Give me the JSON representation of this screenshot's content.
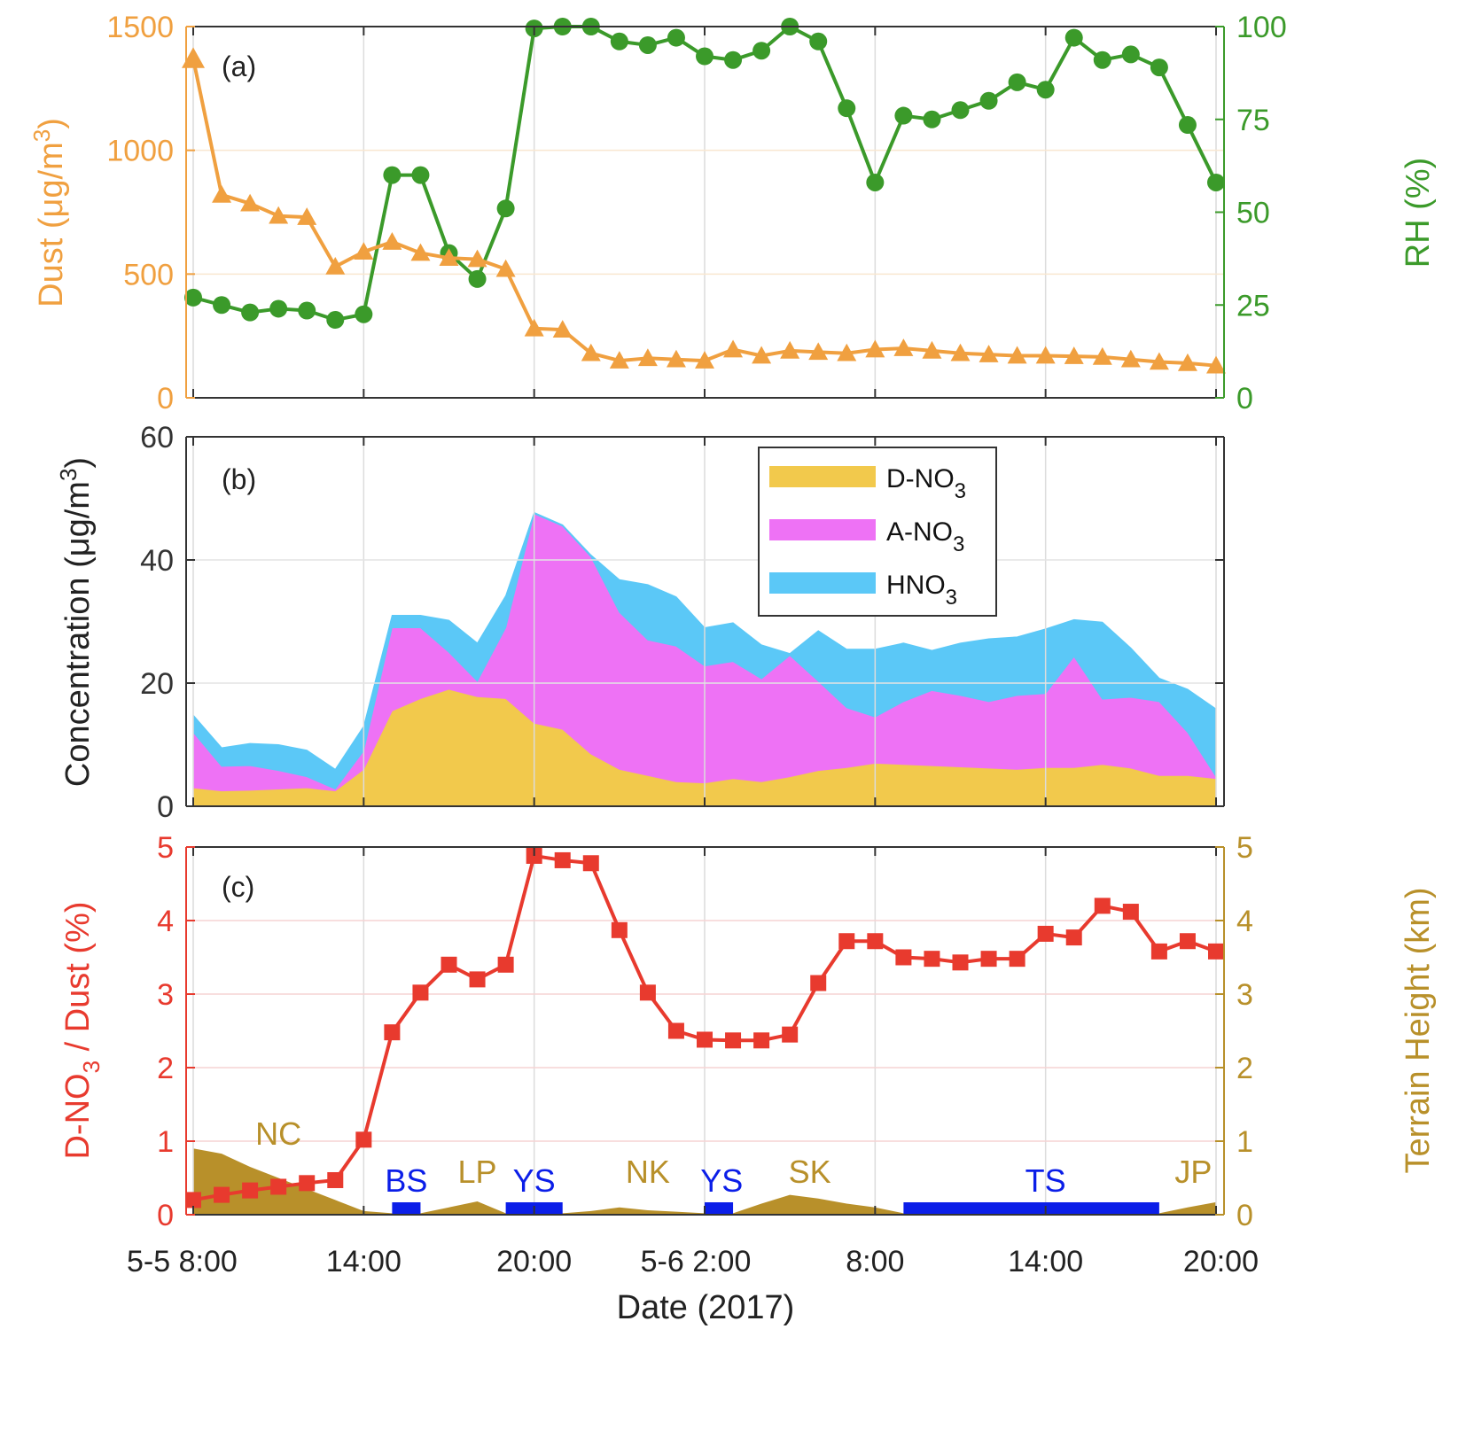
{
  "time_ticks": [
    {
      "h": 0,
      "label": "5-5 8:00"
    },
    {
      "h": 6,
      "label": "14:00"
    },
    {
      "h": 12,
      "label": "20:00"
    },
    {
      "h": 18,
      "label": "5-6 2:00"
    },
    {
      "h": 24,
      "label": "8:00"
    },
    {
      "h": 30,
      "label": "14:00"
    },
    {
      "h": 36,
      "label": "20:00"
    }
  ],
  "colors": {
    "dust": "#f0a040",
    "rh": "#3b9a2a",
    "dno3": "#f2c94c",
    "ano3": "#ee72f5",
    "hno3": "#5bc8f7",
    "ratio": "#e83a2e",
    "terrain_fill": "#b8902a",
    "terrain_text": "#b8902a",
    "sea": "#0b1ee8"
  },
  "chart_data": [
    {
      "panel": "(a)",
      "type": "line",
      "xlabel": "Date (2017)",
      "series": [
        {
          "name": "",
          "axis": "left",
          "marker": "triangle",
          "hours": [
            0,
            1,
            2,
            3,
            4,
            5,
            6,
            7,
            8,
            9,
            10,
            11,
            12,
            13,
            14,
            15,
            16,
            17,
            18,
            19,
            20,
            21,
            22,
            23,
            24,
            25,
            26,
            27,
            28,
            29,
            30,
            31,
            32,
            33,
            34,
            35,
            36
          ],
          "values": [
            1370,
            820,
            785,
            735,
            730,
            530,
            590,
            630,
            585,
            565,
            560,
            520,
            280,
            275,
            180,
            150,
            160,
            155,
            150,
            195,
            170,
            190,
            185,
            180,
            195,
            200,
            190,
            180,
            175,
            170,
            170,
            168,
            165,
            155,
            145,
            140,
            130
          ]
        },
        {
          "name": "",
          "axis": "right",
          "marker": "circle",
          "hours": [
            0,
            1,
            2,
            3,
            4,
            5,
            6,
            7,
            8,
            9,
            10,
            11,
            12,
            13,
            14,
            15,
            16,
            17,
            18,
            19,
            20,
            21,
            22,
            23,
            24,
            25,
            26,
            27,
            28,
            29,
            30,
            31,
            32,
            33,
            34,
            35,
            36
          ],
          "values": [
            27,
            25,
            23,
            24,
            23.5,
            21,
            22.5,
            60,
            60,
            39,
            32,
            51,
            99.5,
            100,
            100,
            96,
            95,
            97,
            92,
            91,
            93.5,
            100,
            96,
            78,
            58,
            76,
            75,
            77.5,
            80,
            85,
            83,
            97,
            91,
            92.5,
            89,
            73.5,
            58
          ]
        }
      ],
      "y_left": {
        "label": "Dust (μg/m³)",
        "label_main": "Dust (μg/m",
        "label_sup": "3",
        "label_end": ")",
        "lim": [
          0,
          1500
        ],
        "ticks": [
          0,
          500,
          1000,
          1500
        ]
      },
      "y_right": {
        "label": "RH (%)",
        "lim": [
          0,
          100
        ],
        "ticks": [
          0,
          25,
          50,
          75,
          100
        ]
      }
    },
    {
      "panel": "(b)",
      "type": "area",
      "stacked": true,
      "xlabel": "Date (2017)",
      "hours": [
        0,
        1,
        2,
        3,
        4,
        5,
        6,
        7,
        8,
        9,
        10,
        11,
        12,
        13,
        14,
        15,
        16,
        17,
        18,
        19,
        20,
        21,
        22,
        23,
        24,
        25,
        26,
        27,
        28,
        29,
        30,
        31,
        32,
        33,
        34,
        35,
        36
      ],
      "series": [
        {
          "name": "D-NO₃",
          "name_main": "D-NO",
          "name_sub": "3",
          "values": [
            3,
            2.5,
            2.6,
            2.8,
            3,
            2.5,
            6,
            15.5,
            17.5,
            19,
            17.8,
            17.5,
            13.5,
            12.5,
            8.5,
            6,
            5,
            4,
            3.8,
            4.5,
            4,
            4.8,
            5.8,
            6.3,
            7,
            6.8,
            6.6,
            6.4,
            6.2,
            6,
            6.3,
            6.3,
            6.8,
            6.2,
            5,
            5,
            4.5
          ]
        },
        {
          "name": "A-NO₃",
          "name_main": "A-NO",
          "name_sub": "3",
          "values": [
            9,
            4,
            4,
            3,
            1.8,
            0.3,
            3,
            13.5,
            11.5,
            6,
            2.5,
            11.5,
            34,
            33,
            32,
            25.5,
            22,
            22,
            19,
            19,
            16.7,
            19.7,
            14.5,
            9.7,
            7.5,
            10.2,
            12.2,
            11.6,
            10.8,
            12,
            12,
            18,
            10.6,
            11.5,
            12,
            7,
            0.3
          ]
        },
        {
          "name": "HNO₃",
          "name_main": "HNO",
          "name_sub": "3",
          "values": [
            2.8,
            3,
            3.6,
            4.2,
            4.3,
            3.2,
            4,
            2,
            2,
            5.2,
            6.2,
            5.2,
            0.2,
            0.2,
            0.3,
            5.3,
            9,
            8,
            6.2,
            6.3,
            5.5,
            0.3,
            8.2,
            9.5,
            11,
            9.5,
            6.5,
            8.5,
            10.2,
            9.5,
            10.5,
            6,
            12.5,
            8,
            3.8,
            7,
            11
          ]
        }
      ],
      "y_left": {
        "label": "Concentration (μg/m³)",
        "label_main": "Concentration (μg/m",
        "label_sup": "3",
        "label_end": ")",
        "lim": [
          0,
          60
        ],
        "ticks": [
          0,
          20,
          40,
          60
        ]
      },
      "legend": "top-right"
    },
    {
      "panel": "(c)",
      "type": "line",
      "xlabel": "Date (2017)",
      "series": [
        {
          "name": "",
          "axis": "left",
          "marker": "square",
          "hours": [
            0,
            1,
            2,
            3,
            4,
            5,
            6,
            7,
            8,
            9,
            10,
            11,
            12,
            13,
            14,
            15,
            16,
            17,
            18,
            19,
            20,
            21,
            22,
            23,
            24,
            25,
            26,
            27,
            28,
            29,
            30,
            31,
            32,
            33,
            34,
            35,
            36
          ],
          "values": [
            0.2,
            0.27,
            0.33,
            0.38,
            0.43,
            0.47,
            1.02,
            2.48,
            3.02,
            3.4,
            3.2,
            3.4,
            4.88,
            4.82,
            4.78,
            3.87,
            3.02,
            2.5,
            2.38,
            2.37,
            2.37,
            2.45,
            3.15,
            3.72,
            3.72,
            3.5,
            3.48,
            3.43,
            3.48,
            3.48,
            3.82,
            3.77,
            4.2,
            4.12,
            3.58,
            3.72,
            3.58
          ]
        },
        {
          "name": "",
          "axis": "right",
          "type": "area",
          "hours": [
            0,
            1,
            2,
            3,
            4,
            5,
            6,
            7,
            8,
            9,
            10,
            11,
            12,
            13,
            14,
            15,
            16,
            17,
            18,
            19,
            20,
            21,
            22,
            23,
            24,
            25,
            26,
            27,
            28,
            29,
            30,
            31,
            32,
            33,
            34,
            35,
            36
          ],
          "values": [
            0.9,
            0.83,
            0.65,
            0.5,
            0.35,
            0.2,
            0.05,
            0.02,
            0.02,
            0.1,
            0.18,
            0.02,
            0.02,
            0.02,
            0.05,
            0.1,
            0.06,
            0.04,
            0.02,
            0.02,
            0.15,
            0.27,
            0.22,
            0.15,
            0.1,
            0.02,
            0.02,
            0.02,
            0.02,
            0.02,
            0.02,
            0.02,
            0.02,
            0.02,
            0.02,
            0.1,
            0.17
          ]
        }
      ],
      "y_left": {
        "label": "D-NO₃ / Dust (%)",
        "label_main": "D-NO",
        "label_sub": "3",
        "label_end": " / Dust (%)",
        "lim": [
          0,
          5
        ],
        "ticks": [
          0,
          1,
          2,
          3,
          4,
          5
        ]
      },
      "y_right": {
        "label": "Terrain Height (km)",
        "lim": [
          0,
          5
        ],
        "ticks": [
          0,
          1,
          2,
          3,
          4,
          5
        ]
      },
      "regions": [
        {
          "label": "NC",
          "kind": "land",
          "h": 3
        },
        {
          "label": "BS",
          "kind": "sea",
          "h": 7.5,
          "span": [
            7,
            8
          ]
        },
        {
          "label": "LP",
          "kind": "land",
          "h": 10
        },
        {
          "label": "YS",
          "kind": "sea",
          "h": 12,
          "span": [
            11,
            13
          ]
        },
        {
          "label": "NK",
          "kind": "land",
          "h": 16
        },
        {
          "label": "YS",
          "kind": "sea",
          "h": 18.6,
          "span": [
            18,
            19
          ]
        },
        {
          "label": "SK",
          "kind": "land",
          "h": 21.7
        },
        {
          "label": "TS",
          "kind": "sea",
          "h": 30,
          "span": [
            25,
            34
          ]
        },
        {
          "label": "JP",
          "kind": "land",
          "h": 35.2
        }
      ]
    }
  ]
}
